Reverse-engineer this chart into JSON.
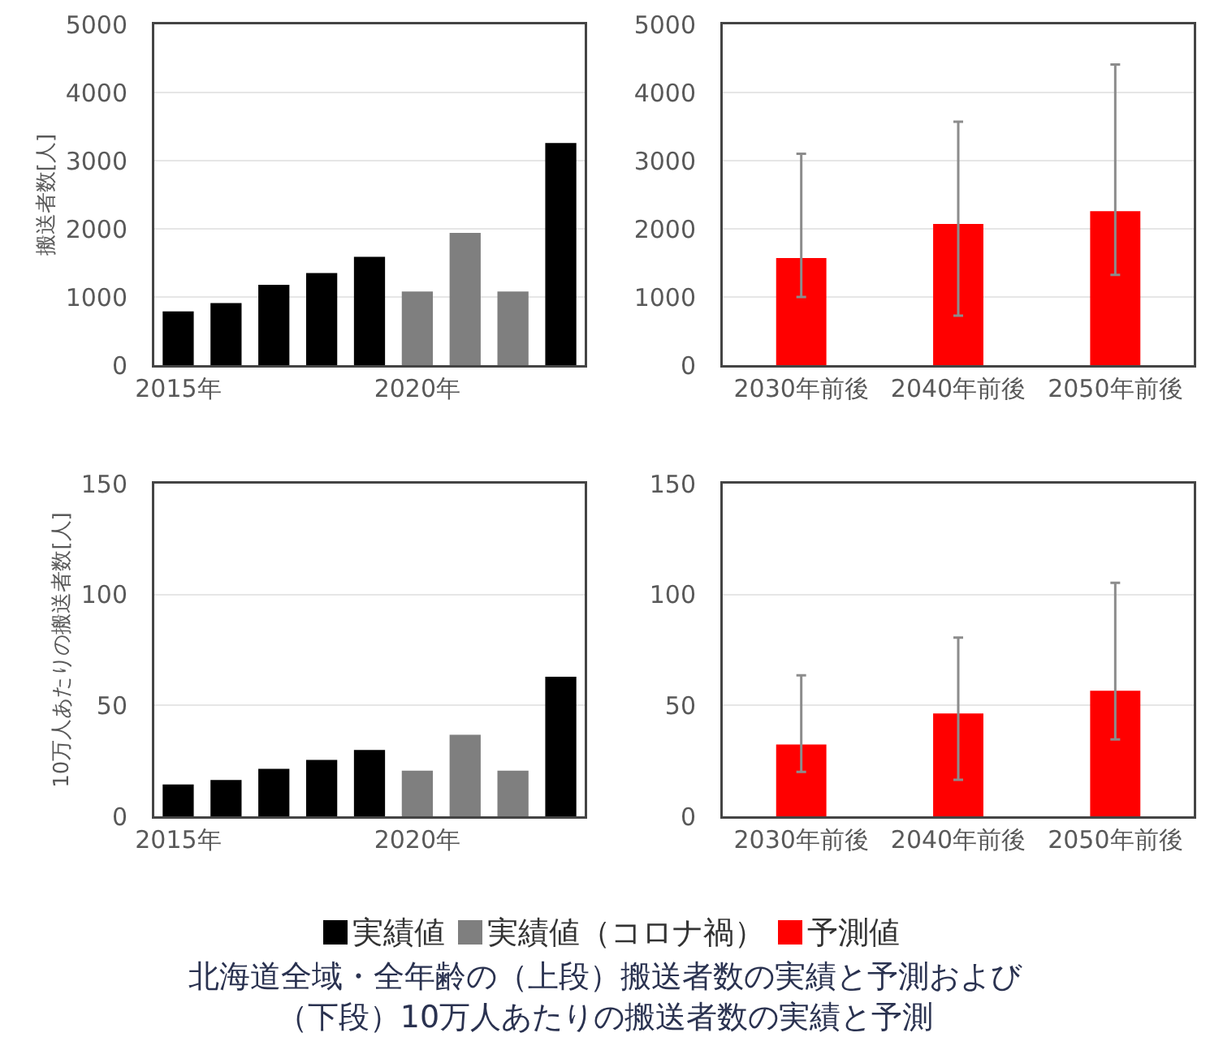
{
  "chart_data": [
    {
      "type": "bar",
      "ylabel": "搬送者数[人]",
      "categories": [
        "2015年",
        null,
        null,
        null,
        null,
        "2020年",
        null,
        null,
        null
      ],
      "series": [
        {
          "name": "実績値",
          "color": "#000000",
          "values": [
            790,
            910,
            1180,
            1350,
            1590,
            null,
            null,
            null,
            3260
          ]
        },
        {
          "name": "実績値（コロナ禍）",
          "color": "#7f7f7f",
          "values": [
            null,
            null,
            null,
            null,
            null,
            1080,
            1940,
            1080,
            null
          ]
        }
      ],
      "ylim": [
        0,
        5000
      ],
      "yticks": [
        0,
        1000,
        2000,
        3000,
        4000,
        5000
      ],
      "grid": "y",
      "legend": "bottom"
    },
    {
      "type": "bar",
      "categories": [
        "2030年前後",
        "2040年前後",
        "2050年前後"
      ],
      "series": [
        {
          "name": "予測値",
          "color": "#ff0000",
          "values": [
            1570,
            2070,
            2260
          ],
          "errors": [
            [
              1000,
              3100
            ],
            [
              725,
              3570
            ],
            [
              1325,
              4410
            ]
          ]
        }
      ],
      "ylim": [
        0,
        5000
      ],
      "yticks": [
        0,
        1000,
        2000,
        3000,
        4000,
        5000
      ],
      "grid": "y",
      "legend": "bottom"
    },
    {
      "type": "bar",
      "ylabel": "10万人あたりの搬送者数[人]",
      "categories": [
        "2015年",
        null,
        null,
        null,
        null,
        "2020年",
        null,
        null,
        null
      ],
      "series": [
        {
          "name": "実績値",
          "color": "#000000",
          "values": [
            14.4,
            16.4,
            21.4,
            25.4,
            29.9,
            null,
            null,
            null,
            62.9
          ]
        },
        {
          "name": "実績値（コロナ禍）",
          "color": "#7f7f7f",
          "values": [
            null,
            null,
            null,
            null,
            null,
            20.6,
            36.8,
            20.6,
            null
          ]
        }
      ],
      "ylim": [
        0,
        150
      ],
      "yticks": [
        0,
        50,
        100,
        150
      ],
      "grid": "y",
      "legend": "bottom"
    },
    {
      "type": "bar",
      "categories": [
        "2030年前後",
        "2040年前後",
        "2050年前後"
      ],
      "series": [
        {
          "name": "予測値",
          "color": "#ff0000",
          "values": [
            32.4,
            46.4,
            56.6
          ],
          "errors": [
            [
              20,
              63.6
            ],
            [
              16.5,
              80.6
            ],
            [
              34.7,
              105.3
            ]
          ]
        }
      ],
      "ylim": [
        0,
        150
      ],
      "yticks": [
        0,
        50,
        100,
        150
      ],
      "grid": "y",
      "legend": "bottom",
      "annotations": [
        "北海道全域・全年齢の（上段）搬送者数の実績と予測および",
        "（下段）10万人あたりの搬送者数の実績と予測"
      ]
    }
  ]
}
